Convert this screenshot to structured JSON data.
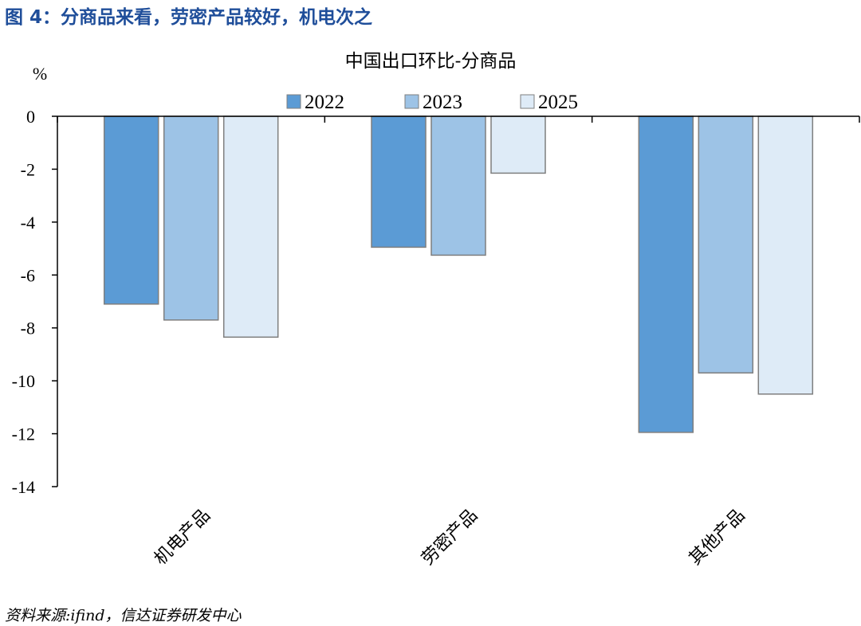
{
  "figure_title": "图 4：分商品来看，劳密产品较好，机电次之",
  "source_note": "资料来源:ifind，信达证券研发中心",
  "chart_data": {
    "type": "bar",
    "title": "中国出口环比-分商品",
    "ylabel": "%",
    "xlabel": "",
    "categories": [
      "机电产品",
      "劳密产品",
      "其他产品"
    ],
    "series": [
      {
        "name": "2022",
        "values": [
          -7.1,
          -4.95,
          -11.95
        ],
        "color": "#5b9bd5"
      },
      {
        "name": "2023",
        "values": [
          -7.7,
          -5.25,
          -9.7
        ],
        "color": "#9dc3e6"
      },
      {
        "name": "2025",
        "values": [
          -8.35,
          -2.15,
          -10.5
        ],
        "color": "#deebf7"
      }
    ],
    "ylim": [
      -14,
      0
    ],
    "yticks": [
      0,
      -2,
      -4,
      -6,
      -8,
      -10,
      -12,
      -14
    ],
    "grid": false,
    "legend": "top-center"
  }
}
